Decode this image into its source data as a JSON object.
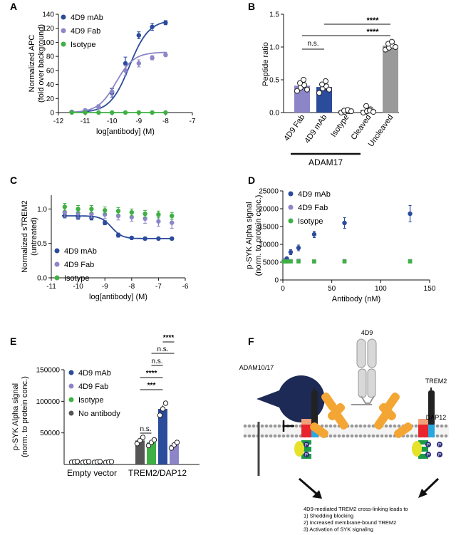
{
  "colors": {
    "mab": "#2b4b9b",
    "fab": "#8c86c8",
    "iso": "#3fb043",
    "noab": "#555555",
    "uncleaved": "#9a9a9a",
    "axis": "#111111",
    "membrane": "#999999"
  },
  "chart_data": [
    {
      "panel": "A",
      "type": "scatter",
      "xlabel": "log[antibody] (M)",
      "ylabel": "Normalized APC\n(fold over background)",
      "xlim": [
        -12,
        -7
      ],
      "ylim": [
        0,
        140
      ],
      "x_ticks": [
        "-12",
        "-11",
        "-10",
        "-9",
        "-8",
        "-7"
      ],
      "y_ticks": [
        "0",
        "20",
        "40",
        "60",
        "80",
        "100",
        "120",
        "140"
      ],
      "legend": [
        "4D9 mAb",
        "4D9 Fab",
        "Isotype"
      ],
      "series": [
        {
          "name": "4D9 mAb",
          "x": [
            -11.5,
            -11,
            -10.5,
            -10,
            -9.5,
            -9,
            -8.5,
            -8
          ],
          "y": [
            1,
            3,
            8,
            28,
            70,
            110,
            122,
            128
          ],
          "err": [
            1,
            2,
            3,
            6,
            9,
            5,
            5,
            3
          ],
          "fit": "sigmoid"
        },
        {
          "name": "4D9 Fab",
          "x": [
            -11.5,
            -11,
            -10.5,
            -10,
            -9.5,
            -9,
            -8.5,
            -8
          ],
          "y": [
            1,
            3,
            8,
            30,
            60,
            70,
            78,
            82
          ],
          "err": [
            1,
            2,
            3,
            5,
            7,
            5,
            3,
            2
          ],
          "fit": "sigmoid"
        },
        {
          "name": "Isotype",
          "x": [
            -11.5,
            -11,
            -10.5,
            -10,
            -9.5,
            -9,
            -8.5,
            -8
          ],
          "y": [
            0,
            0,
            0,
            0,
            0,
            0,
            0,
            0
          ],
          "err": [
            0,
            0,
            0,
            0,
            0,
            0,
            0,
            0
          ],
          "fit": "flat"
        }
      ]
    },
    {
      "panel": "B",
      "type": "bar",
      "ylabel": "Peptide ratio",
      "ylim": [
        0,
        1.5
      ],
      "y_ticks": [
        "0.0",
        "0.5",
        "1.0",
        "1.5"
      ],
      "categories": [
        "4D9 Fab",
        "4D9 mAb",
        "Isotype",
        "Cleaved",
        "Uncleaved"
      ],
      "values": [
        0.41,
        0.39,
        0.02,
        0.03,
        1.02
      ],
      "points": [
        [
          0.33,
          0.38,
          0.42,
          0.45,
          0.5,
          0.35
        ],
        [
          0.3,
          0.37,
          0.4,
          0.43,
          0.48,
          0.35
        ],
        [
          0.0,
          0.01,
          0.02,
          0.03,
          0.04,
          0.02
        ],
        [
          0.0,
          0.02,
          0.05,
          0.1,
          0.03,
          0.01
        ],
        [
          0.96,
          0.99,
          1.02,
          1.05,
          1.08,
          1.0
        ]
      ],
      "group_label": "ADAM17",
      "annotations": [
        "n.s.",
        "****",
        "****"
      ]
    },
    {
      "panel": "C",
      "type": "scatter",
      "xlabel": "log[antibody] (M)",
      "ylabel": "Normalized  sTREM2\n(untreated)",
      "xlim": [
        -11,
        -6
      ],
      "ylim": [
        0,
        1.2
      ],
      "x_ticks": [
        "-11",
        "-10",
        "-9",
        "-8",
        "-7",
        "-6"
      ],
      "y_ticks": [
        "0.0",
        "0.5",
        "1.0"
      ],
      "legend": [
        "4D9 mAb",
        "4D9 Fab",
        "Isotype"
      ],
      "series": [
        {
          "name": "4D9 mAb",
          "x": [
            -10.5,
            -10,
            -9.5,
            -9,
            -8.5,
            -8,
            -7.5,
            -7,
            -6.5
          ],
          "y": [
            0.9,
            0.88,
            0.87,
            0.8,
            0.62,
            0.58,
            0.57,
            0.57,
            0.57
          ],
          "err": [
            0.03,
            0.03,
            0.03,
            0.03,
            0.03,
            0.02,
            0.02,
            0.02,
            0.02
          ],
          "fit": "sigmoid"
        },
        {
          "name": "4D9 Fab",
          "x": [
            -10.5,
            -10,
            -9.5,
            -9,
            -8.5,
            -8,
            -7.5,
            -7,
            -6.5
          ],
          "y": [
            0.95,
            0.94,
            0.93,
            0.92,
            0.9,
            0.88,
            0.86,
            0.82,
            0.8
          ],
          "err": [
            0.07,
            0.07,
            0.06,
            0.06,
            0.06,
            0.06,
            0.07,
            0.07,
            0.08
          ],
          "fit": "none"
        },
        {
          "name": "Isotype",
          "x": [
            -10.5,
            -10,
            -9.5,
            -9,
            -8.5,
            -8,
            -7.5,
            -7,
            -6.5
          ],
          "y": [
            1.03,
            1.0,
            1.0,
            0.98,
            0.97,
            0.95,
            0.93,
            0.92,
            0.9
          ],
          "err": [
            0.05,
            0.05,
            0.05,
            0.05,
            0.05,
            0.05,
            0.05,
            0.05,
            0.05
          ],
          "fit": "none"
        }
      ]
    },
    {
      "panel": "D",
      "type": "scatter",
      "xlabel": "Antibody (nM)",
      "ylabel": "p-SYK Alpha signal\n(norm. to protein conc.)",
      "xlim": [
        0,
        150
      ],
      "ylim": [
        0,
        25000
      ],
      "x_ticks": [
        "0",
        "50",
        "100",
        "150"
      ],
      "y_ticks": [
        "0",
        "5000",
        "10000",
        "15000",
        "20000",
        "25000"
      ],
      "legend": [
        "4D9 mAb",
        "4D9 Fab",
        "Isotype"
      ],
      "series": [
        {
          "name": "4D9 mAb",
          "x": [
            1,
            4,
            8,
            16,
            32,
            63,
            130
          ],
          "y": [
            5400,
            6000,
            7800,
            9000,
            12800,
            16000,
            18600
          ],
          "err": [
            300,
            400,
            700,
            800,
            900,
            1500,
            2300
          ]
        },
        {
          "name": "4D9 Fab",
          "x": [
            1,
            4,
            8,
            16,
            32,
            63,
            130
          ],
          "y": [
            5300,
            5200,
            5300,
            5400,
            5200,
            5300,
            5300
          ],
          "err": [
            200,
            200,
            200,
            200,
            200,
            200,
            200
          ]
        },
        {
          "name": "Isotype",
          "x": [
            1,
            4,
            8,
            16,
            32,
            63,
            130
          ],
          "y": [
            5200,
            5200,
            5200,
            5200,
            5200,
            5200,
            5200
          ],
          "err": [
            150,
            150,
            150,
            150,
            150,
            150,
            150
          ]
        }
      ]
    },
    {
      "panel": "E",
      "type": "bar",
      "ylabel": "p-SYK Alpha signal\n(norm. to protein conc.)",
      "ylim": [
        0,
        150000
      ],
      "y_ticks": [
        "50000",
        "100000",
        "150000"
      ],
      "categories": [
        "Empty vector",
        "TREM2/DAP12"
      ],
      "series": [
        {
          "name": "4D9 mAb",
          "values": [
            4000,
            88000
          ],
          "points": [
            [
              3500,
              4000,
              4500
            ],
            [
              78000,
              88000,
              97000
            ]
          ]
        },
        {
          "name": "4D9 Fab",
          "values": [
            3800,
            31000
          ],
          "points": [
            [
              3300,
              3800,
              4300
            ],
            [
              26000,
              31000,
              35000
            ]
          ]
        },
        {
          "name": "Isotype",
          "values": [
            4000,
            35000
          ],
          "points": [
            [
              3500,
              4000,
              4500
            ],
            [
              30000,
              35000,
              39000
            ]
          ]
        },
        {
          "name": "No antibody",
          "values": [
            4100,
            38000
          ],
          "points": [
            [
              3600,
              4100,
              4600
            ],
            [
              33000,
              38000,
              43000
            ]
          ]
        }
      ],
      "annotations": [
        "n.s.",
        "***",
        "****",
        "n.s.",
        "n.s.",
        "****"
      ]
    }
  ],
  "panel_labels": [
    "A",
    "B",
    "C",
    "D",
    "E",
    "F"
  ],
  "diagram": {
    "adam_label": "ADAM10/17",
    "antibody_label": "4D9",
    "trem2_label": "TREM2",
    "dap12_label": "DAP12",
    "phospho": "P",
    "caption": [
      "4D9-mediated TREM2 cross-linking leads to",
      "1) Shedding blocking",
      "2) Increased membrane-bound TREM2",
      "3) Activation of SYK signaling"
    ]
  }
}
